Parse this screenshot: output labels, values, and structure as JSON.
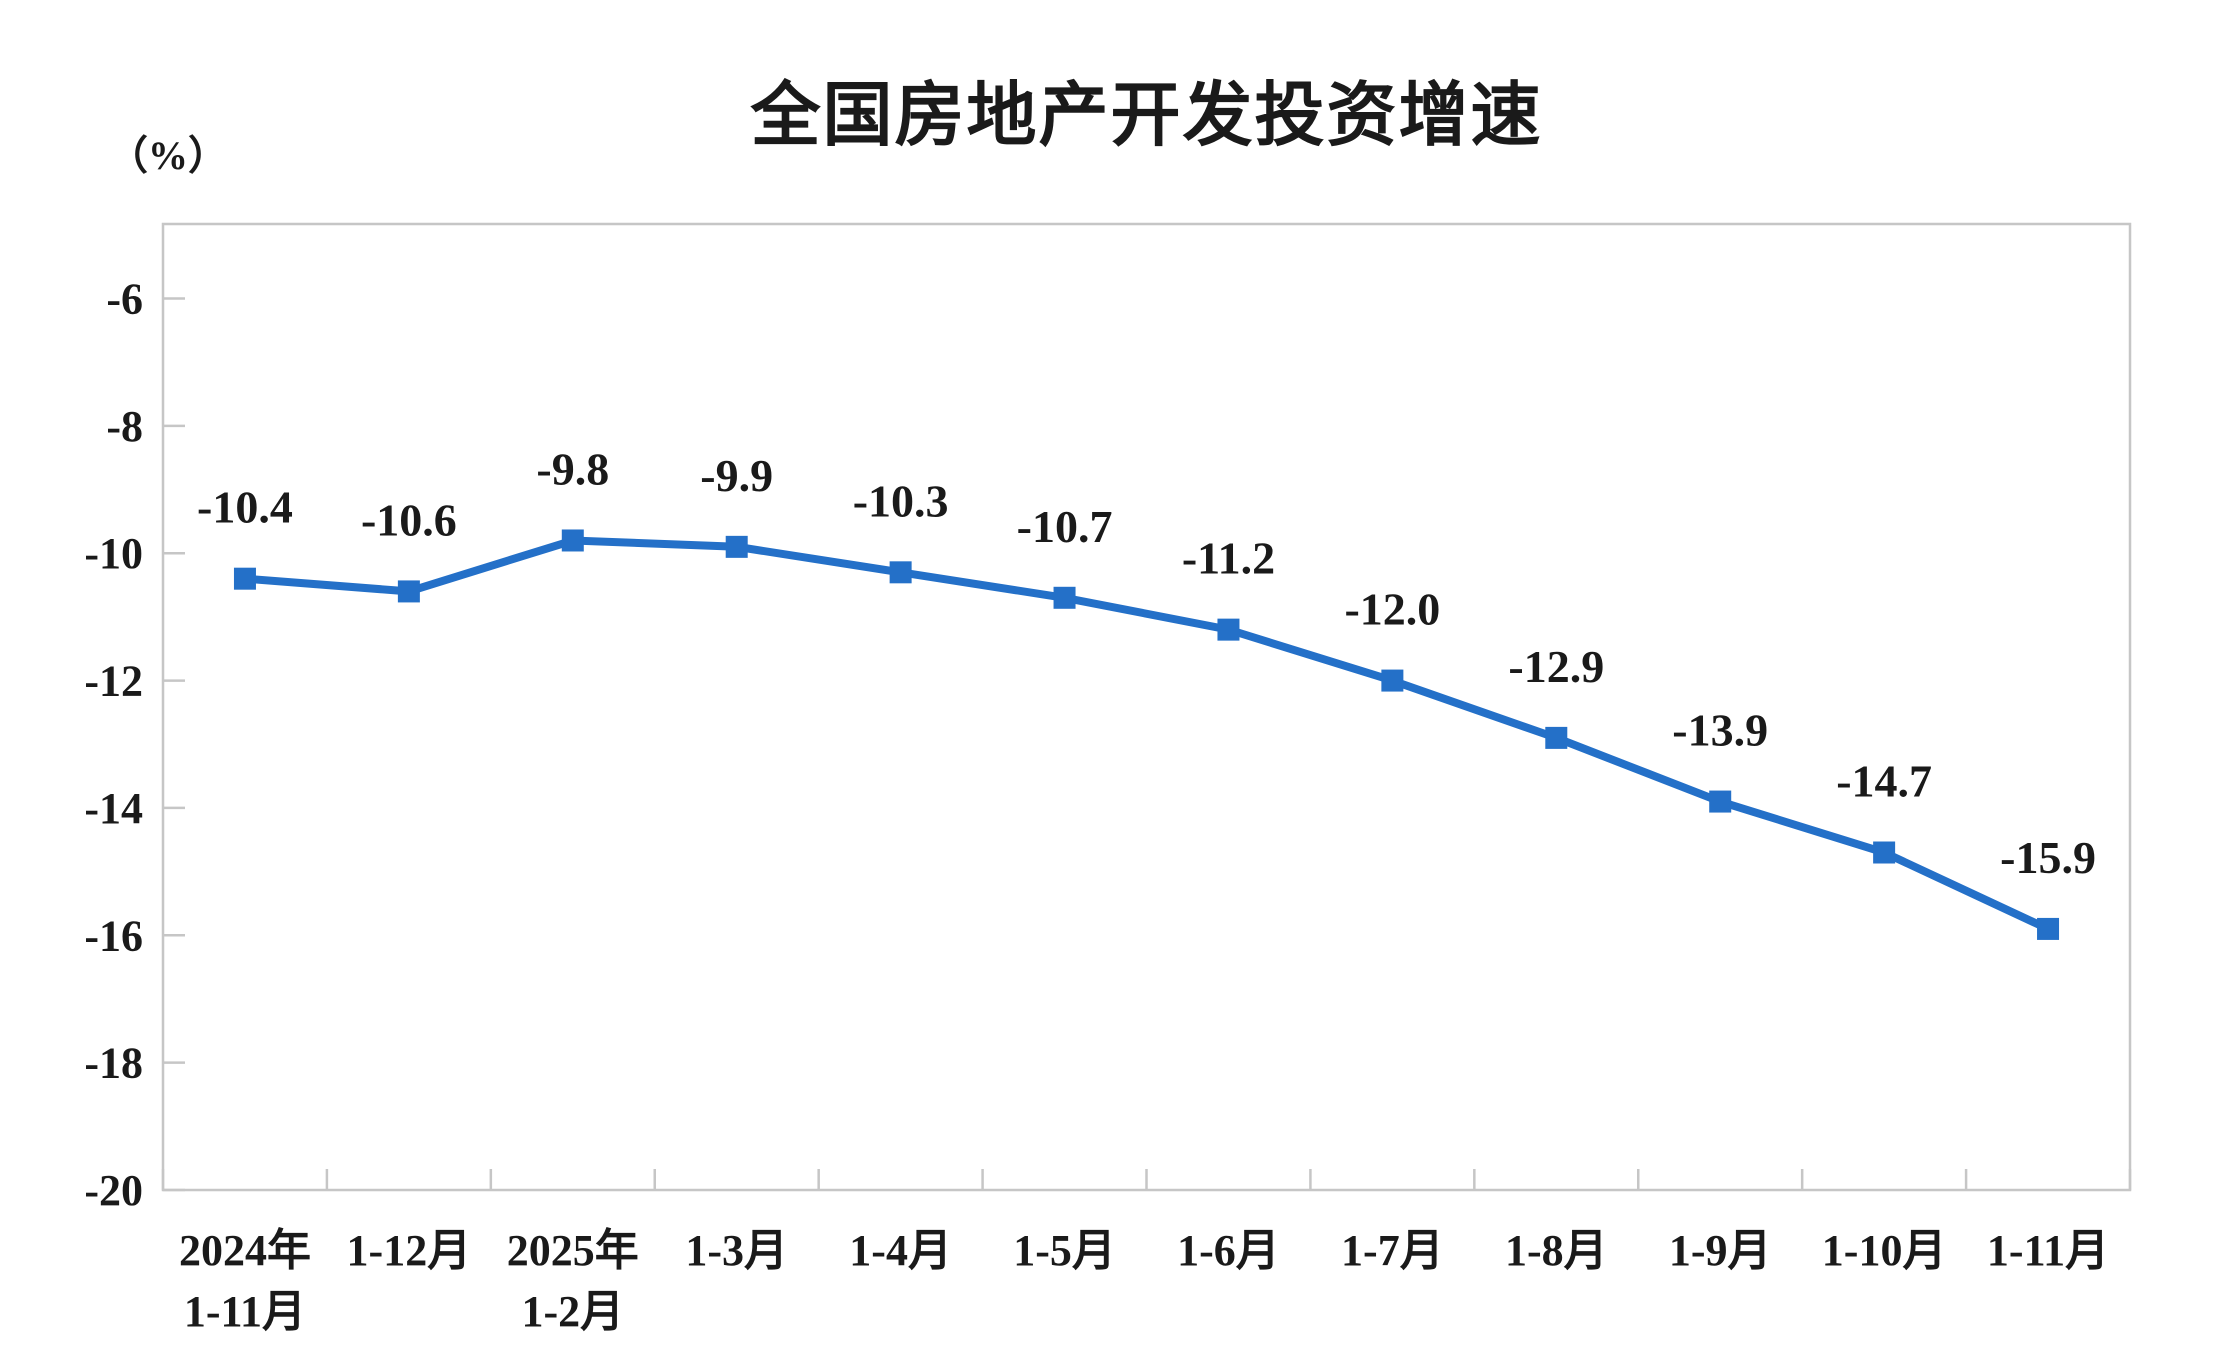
{
  "page": {
    "background_color": "#ffffff"
  },
  "chart_data": {
    "type": "line",
    "title": "全国房地产开发投资增速",
    "y_unit_label": "（%）",
    "categories": [
      "2024年\n1-11月",
      "1-12月",
      "2025年\n1-2月",
      "1-3月",
      "1-4月",
      "1-5月",
      "1-6月",
      "1-7月",
      "1-8月",
      "1-9月",
      "1-10月",
      "1-11月"
    ],
    "series": [
      {
        "name": "全国房地产开发投资增速",
        "values": [
          -10.4,
          -10.6,
          -9.8,
          -9.9,
          -10.3,
          -10.7,
          -11.2,
          -12.0,
          -12.9,
          -13.9,
          -14.7,
          -15.9
        ],
        "data_labels": [
          "-10.4",
          "-10.6",
          "-9.8",
          "-9.9",
          "-10.3",
          "-10.7",
          "-11.2",
          "-12.0",
          "-12.9",
          "-13.9",
          "-14.7",
          "-15.9"
        ]
      }
    ],
    "xlabel": "",
    "ylabel": "（%）",
    "ylim": [
      -20,
      -4.83
    ],
    "yticks": [
      -6,
      -8,
      -10,
      -12,
      -14,
      -16,
      -18,
      -20
    ],
    "ytick_labels": [
      "-6",
      "-8",
      "-10",
      "-12",
      "-14",
      "-16",
      "-18",
      "-20"
    ],
    "grid": false,
    "legend_position": "none",
    "marker": "square",
    "line_color": "#2470C8",
    "marker_color": "#2470C8",
    "axis_color": "#C6C6C6",
    "label_color": "#1a1a1a"
  }
}
